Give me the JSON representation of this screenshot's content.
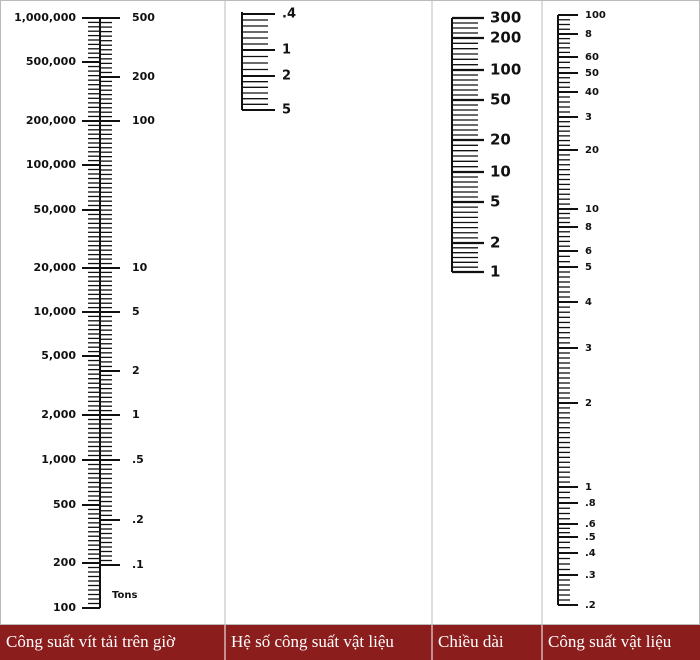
{
  "columns": [
    {
      "label": "Công suất vít tải trên giờ",
      "left_scale": [
        "1,000,000",
        "500,000",
        "200,000",
        "100,000",
        "50,000",
        "20,000",
        "10,000",
        "5,000",
        "2,000",
        "1,000",
        "500",
        "200",
        "100"
      ],
      "right_scale": [
        "500",
        "200",
        "100",
        "10",
        "5",
        "2",
        "1",
        ".5",
        ".2",
        ".1"
      ],
      "unit": "Tons"
    },
    {
      "label": "Hệ số công suất vật liệu",
      "scale": [
        ".4",
        "1",
        "2",
        "5"
      ]
    },
    {
      "label": "Chiều dài",
      "scale": [
        "300",
        "200",
        "100",
        "50",
        "20",
        "10",
        "5",
        "2",
        "1"
      ]
    },
    {
      "label": "Công suất vật liệu",
      "scale": [
        "100",
        "8",
        "60",
        "50",
        "40",
        "3",
        "20",
        "10",
        "8",
        "6",
        "5",
        "4",
        "3",
        "2",
        "1",
        ".8",
        ".6",
        ".5",
        ".4",
        ".3",
        ".2"
      ]
    }
  ]
}
